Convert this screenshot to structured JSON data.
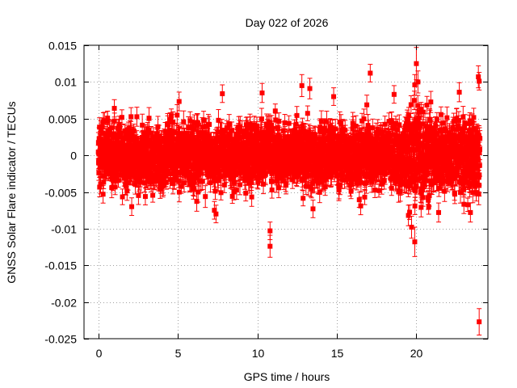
{
  "chart_data": {
    "type": "scatter",
    "title": "Day 022 of 2026",
    "xlabel": "GPS time / hours",
    "ylabel": "GNSS Solar Flare indicator / TECUs",
    "xlim": [
      -0.9,
      24.5
    ],
    "ylim": [
      -0.025,
      0.015
    ],
    "xticks": [
      0,
      5,
      10,
      15,
      20
    ],
    "xtick_labels": [
      "0",
      "5",
      "10",
      "15",
      "20"
    ],
    "yticks": [
      -0.025,
      -0.02,
      -0.015,
      -0.01,
      -0.005,
      0,
      0.005,
      0.01,
      0.015
    ],
    "ytick_labels": [
      "-0.025",
      "-0.02",
      "-0.015",
      "-0.01",
      "-0.005",
      "0",
      "0.005",
      "0.01",
      "0.015"
    ],
    "grid": true,
    "legend": "none",
    "series": [
      {
        "name": "GNSS Solar Flare indicator",
        "color": "#ff0000",
        "marker": "square",
        "error_bars": true,
        "typical_error": 0.0012,
        "sampling_interval_hours": 0.00833,
        "background_band": [
          -0.005,
          0.005
        ],
        "outliers": [
          {
            "x": 10.8,
            "y": -0.0124,
            "err": 0.0015
          },
          {
            "x": 10.8,
            "y": -0.0103,
            "err": 0.0012
          },
          {
            "x": 23.95,
            "y": -0.0227,
            "err": 0.0018
          },
          {
            "x": 23.9,
            "y": 0.0107,
            "err": 0.0015
          },
          {
            "x": 23.95,
            "y": 0.0101,
            "err": 0.0012
          },
          {
            "x": 20.0,
            "y": 0.0125,
            "err": 0.0022
          },
          {
            "x": 19.9,
            "y": -0.0118,
            "err": 0.002
          },
          {
            "x": 19.7,
            "y": -0.0098,
            "err": 0.0015
          },
          {
            "x": 20.1,
            "y": 0.01,
            "err": 0.0015
          },
          {
            "x": 17.1,
            "y": 0.0112,
            "err": 0.0012
          },
          {
            "x": 12.8,
            "y": 0.0095,
            "err": 0.0015
          },
          {
            "x": 13.3,
            "y": 0.0091,
            "err": 0.0014
          },
          {
            "x": 7.8,
            "y": 0.0084,
            "err": 0.0012
          },
          {
            "x": 7.3,
            "y": -0.0075,
            "err": 0.0012
          },
          {
            "x": 7.4,
            "y": -0.008,
            "err": 0.0012
          },
          {
            "x": 2.1,
            "y": -0.007,
            "err": 0.0012
          },
          {
            "x": 13.5,
            "y": -0.0073,
            "err": 0.0012
          },
          {
            "x": 16.5,
            "y": -0.0069,
            "err": 0.0012
          },
          {
            "x": 19.5,
            "y": -0.0082,
            "err": 0.0014
          },
          {
            "x": 21.4,
            "y": -0.0078,
            "err": 0.0013
          },
          {
            "x": 23.4,
            "y": -0.0078,
            "err": 0.0013
          },
          {
            "x": 10.3,
            "y": 0.0085,
            "err": 0.0013
          },
          {
            "x": 14.8,
            "y": 0.008,
            "err": 0.0012
          },
          {
            "x": 18.6,
            "y": 0.0083,
            "err": 0.0012
          },
          {
            "x": 22.7,
            "y": 0.0086,
            "err": 0.0013
          },
          {
            "x": 19.9,
            "y": 0.0096,
            "err": 0.0014
          },
          {
            "x": 20.3,
            "y": -0.0071,
            "err": 0.0013
          }
        ]
      }
    ]
  }
}
